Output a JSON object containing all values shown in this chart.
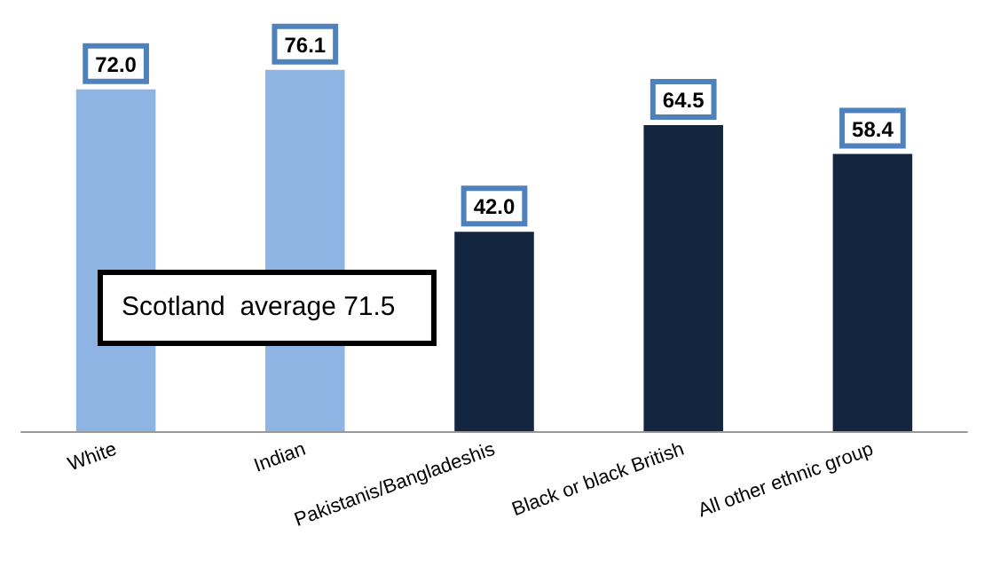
{
  "chart_data": {
    "type": "bar",
    "categories": [
      "White",
      "Indian",
      "Pakistanis/Bangladeshis",
      "Black or black British",
      "All other ethnic group"
    ],
    "values": [
      72.0,
      76.1,
      42.0,
      64.5,
      58.4
    ],
    "colors": [
      "#8db4e2",
      "#8db4e2",
      "#14253f",
      "#14253f",
      "#14253f"
    ],
    "value_labels": [
      "72.0",
      "76.1",
      "42.0",
      "64.5",
      "58.4"
    ],
    "annotations": [
      "Scotland  average 71.5"
    ]
  }
}
